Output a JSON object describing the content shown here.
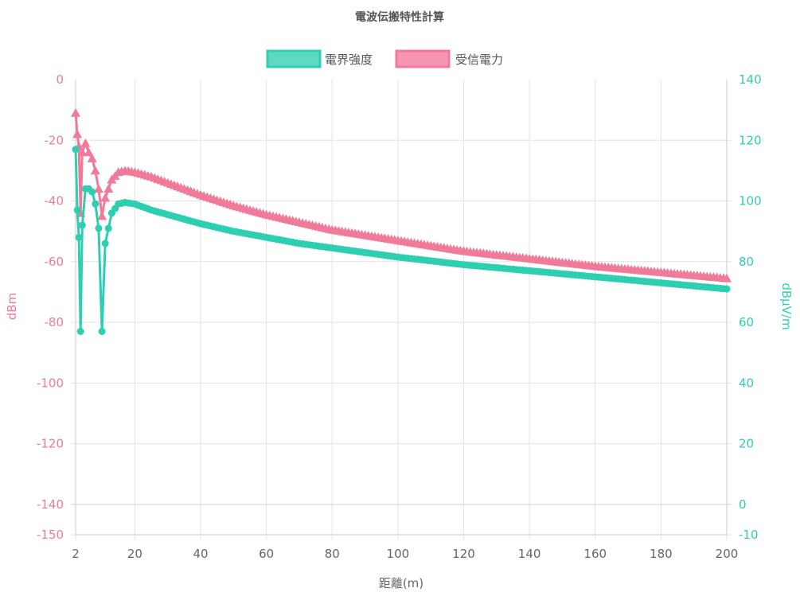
{
  "chart_data": {
    "type": "line",
    "title": "電波伝搬特性計算",
    "xlabel": "距離(m)",
    "ylabel_left": "dBm",
    "ylabel_right": "dBμV/m",
    "xlim": [
      2,
      200
    ],
    "ylim_left": [
      -150,
      0
    ],
    "ylim_right": [
      -10,
      140
    ],
    "x_ticks": [
      2,
      20,
      40,
      60,
      80,
      100,
      120,
      140,
      160,
      180,
      200
    ],
    "y_left_ticks": [
      0,
      -20,
      -40,
      -60,
      -80,
      -100,
      -120,
      -140,
      -150
    ],
    "y_right_ticks": [
      140,
      120,
      100,
      80,
      60,
      40,
      20,
      0,
      -10
    ],
    "grid": true,
    "legend_position": "top",
    "series": [
      {
        "name": "電界強度",
        "axis": "right",
        "color": "#2ecfb1",
        "marker": "circle",
        "points": [
          [
            2,
            117
          ],
          [
            2.5,
            97
          ],
          [
            3,
            88
          ],
          [
            3.5,
            57
          ],
          [
            4,
            92
          ],
          [
            5,
            104
          ],
          [
            6,
            104
          ],
          [
            7,
            103
          ],
          [
            8,
            99
          ],
          [
            9,
            91
          ],
          [
            10,
            57
          ],
          [
            11,
            86
          ],
          [
            13,
            96
          ],
          [
            15,
            99
          ],
          [
            17,
            99.5
          ],
          [
            20,
            99
          ],
          [
            25,
            97
          ],
          [
            30,
            95.5
          ],
          [
            40,
            92.5
          ],
          [
            50,
            90
          ],
          [
            60,
            88
          ],
          [
            70,
            86
          ],
          [
            80,
            84.5
          ],
          [
            100,
            81.5
          ],
          [
            120,
            79
          ],
          [
            140,
            77
          ],
          [
            160,
            75
          ],
          [
            180,
            73
          ],
          [
            200,
            71
          ]
        ]
      },
      {
        "name": "受信電力",
        "axis": "left",
        "color": "#f07a9a",
        "marker": "triangle",
        "points": [
          [
            2,
            -11
          ],
          [
            2.5,
            -18
          ],
          [
            3,
            -22
          ],
          [
            3.5,
            -44
          ],
          [
            4,
            -24
          ],
          [
            5,
            -21
          ],
          [
            6,
            -24
          ],
          [
            7,
            -26
          ],
          [
            8,
            -30
          ],
          [
            9,
            -36
          ],
          [
            10,
            -45
          ],
          [
            11,
            -39
          ],
          [
            13,
            -33
          ],
          [
            15,
            -30.5
          ],
          [
            17,
            -30
          ],
          [
            20,
            -30.5
          ],
          [
            25,
            -32
          ],
          [
            30,
            -34
          ],
          [
            40,
            -38
          ],
          [
            50,
            -41.5
          ],
          [
            60,
            -44.5
          ],
          [
            70,
            -47
          ],
          [
            80,
            -49.5
          ],
          [
            100,
            -53
          ],
          [
            120,
            -56.5
          ],
          [
            140,
            -59
          ],
          [
            160,
            -61.5
          ],
          [
            180,
            -63.5
          ],
          [
            200,
            -65.5
          ]
        ]
      }
    ]
  }
}
